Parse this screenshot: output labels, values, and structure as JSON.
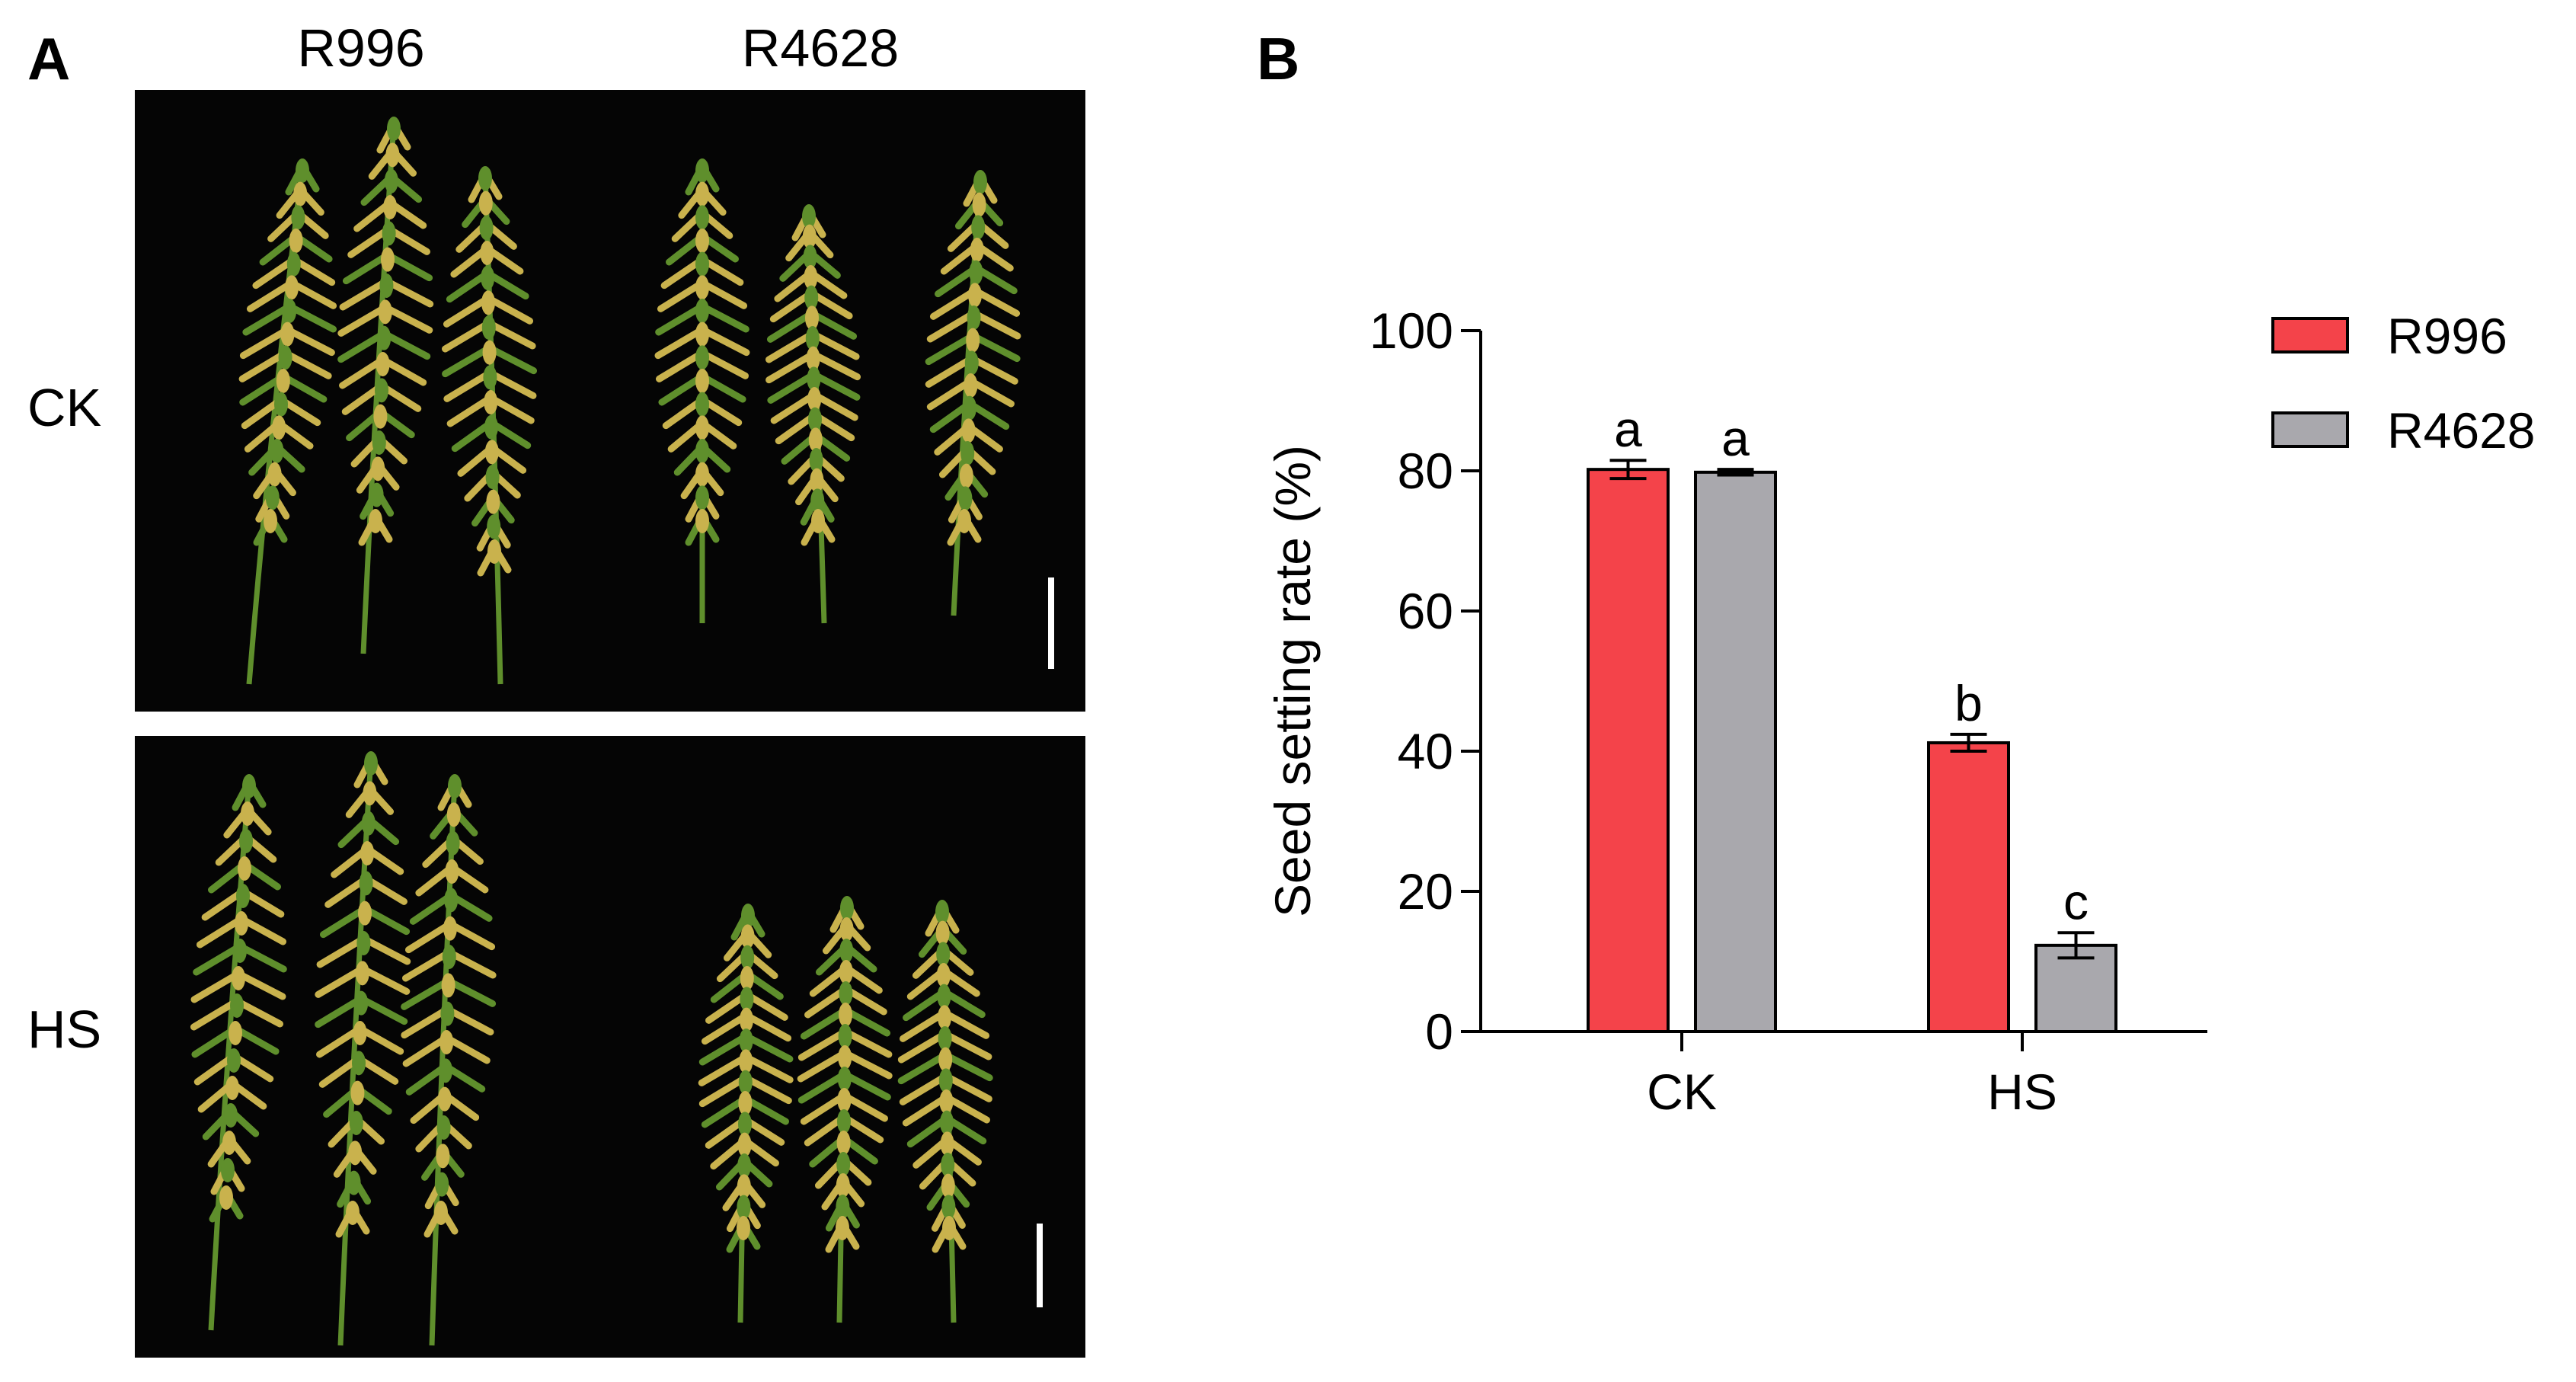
{
  "figure": {
    "panel_a_label": "A",
    "panel_b_label": "B",
    "column_labels": [
      "R996",
      "R4628"
    ],
    "row_labels": [
      "CK",
      "HS"
    ]
  },
  "colors": {
    "r996": "#f4434a",
    "r4628": "#a9a8ad",
    "photo_background": "#050505",
    "panicle_green": "#5f8f2c",
    "panicle_yellow": "#c9b24d"
  },
  "chart_data": {
    "type": "bar",
    "categories": [
      "CK",
      "HS"
    ],
    "series": [
      {
        "name": "R996",
        "values": [
          80.2,
          41.2
        ],
        "errors": [
          1.3,
          1.2
        ],
        "letters": [
          "a",
          "b"
        ],
        "color": "#f4434a"
      },
      {
        "name": "R4628",
        "values": [
          79.8,
          12.3
        ],
        "errors": [
          0.4,
          1.8
        ],
        "letters": [
          "a",
          "c"
        ],
        "color": "#a9a8ad"
      }
    ],
    "ylabel": "Seed setting rate (%)",
    "xlabel": "",
    "ylim": [
      0,
      100
    ],
    "yticks": [
      0,
      20,
      40,
      60,
      80,
      100
    ],
    "grid": false,
    "legend": "top-right"
  }
}
